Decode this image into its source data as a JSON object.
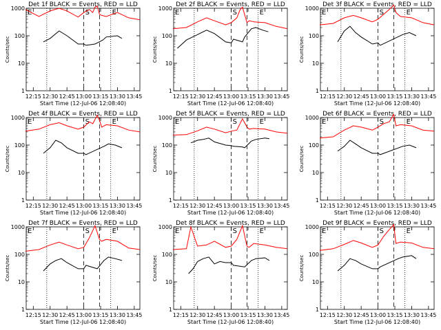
{
  "shared": {
    "ylabel": "Counts/sec",
    "xlabel": "Start Time (12-Jul-06 12:08:40)",
    "xticks": [
      "12:15",
      "12:30",
      "12:45",
      "13:00",
      "13:15",
      "13:30",
      "13:45"
    ],
    "yticks": [
      "1",
      "10",
      "100",
      "1000"
    ],
    "markers": {
      "E_left": "E",
      "S": "S",
      "E_right": "E"
    },
    "colors": {
      "events": "#000000",
      "lld": "#ff0000"
    }
  },
  "chart_data": [
    {
      "type": "line",
      "title": "Det 1f BLACK = Events, RED = LLD",
      "ylabel": "Counts/sec",
      "xlabel": "Start Time (12-Jul-06 12:08:40)",
      "yscale": "log",
      "ylim": [
        1,
        1000
      ],
      "xlim": [
        "12:08",
        "13:50"
      ],
      "series": [
        {
          "name": "LLD",
          "color": "#ff0000",
          "x": [
            "12:08",
            "12:20",
            "12:30",
            "12:38",
            "12:45",
            "12:55",
            "13:00",
            "13:05",
            "13:08",
            "13:10",
            "13:12",
            "13:14",
            "13:16",
            "13:20",
            "13:30",
            "13:40",
            "13:50"
          ],
          "values": [
            900,
            500,
            800,
            1000,
            800,
            480,
            700,
            900,
            700,
            1100,
            1200,
            600,
            550,
            500,
            700,
            450,
            380
          ]
        },
        {
          "name": "Events",
          "color": "#000000",
          "x": [
            "12:24",
            "12:30",
            "12:38",
            "12:45",
            "12:55",
            "13:00",
            "13:02",
            "13:10",
            "13:12",
            "13:17",
            "13:20",
            "13:30",
            "13:34"
          ],
          "values": [
            60,
            80,
            150,
            100,
            50,
            50,
            45,
            50,
            55,
            70,
            90,
            100,
            80
          ]
        }
      ]
    },
    {
      "type": "line",
      "title": "Det 2f BLACK = Events, RED = LLD",
      "ylabel": "Counts/sec",
      "xlabel": "Start Time (12-Jul-06 12:08:40)",
      "yscale": "log",
      "ylim": [
        1,
        1000
      ],
      "xlim": [
        "12:08",
        "13:50"
      ],
      "series": [
        {
          "name": "LLD",
          "color": "#ff0000",
          "x": [
            "12:08",
            "12:20",
            "12:30",
            "12:38",
            "12:45",
            "12:55",
            "13:00",
            "13:05",
            "13:08",
            "13:10",
            "13:14",
            "13:16",
            "13:20",
            "13:30",
            "13:40",
            "13:50"
          ],
          "values": [
            180,
            200,
            320,
            450,
            350,
            250,
            300,
            450,
            900,
            1100,
            300,
            350,
            320,
            300,
            220,
            180
          ]
        },
        {
          "name": "Events",
          "color": "#000000",
          "x": [
            "12:12",
            "12:20",
            "12:30",
            "12:38",
            "12:45",
            "12:55",
            "13:00",
            "13:02",
            "13:10",
            "13:12",
            "13:18",
            "13:22",
            "13:28",
            "13:33"
          ],
          "values": [
            35,
            70,
            110,
            160,
            120,
            60,
            55,
            75,
            60,
            90,
            180,
            200,
            160,
            140
          ]
        }
      ]
    },
    {
      "type": "line",
      "title": "Det 3f BLACK = Events, RED = LLD",
      "ylabel": "Counts/sec",
      "xlabel": "Start Time (12-Jul-06 12:08:40)",
      "yscale": "log",
      "ylim": [
        1,
        1000
      ],
      "xlim": [
        "12:08",
        "13:50"
      ],
      "series": [
        {
          "name": "LLD",
          "color": "#ff0000",
          "x": [
            "12:08",
            "12:20",
            "12:30",
            "12:38",
            "12:45",
            "12:55",
            "13:00",
            "13:05",
            "13:10",
            "13:14",
            "13:16",
            "13:20",
            "13:30",
            "13:40",
            "13:50"
          ],
          "values": [
            250,
            280,
            450,
            550,
            450,
            320,
            400,
            600,
            900,
            1300,
            700,
            500,
            450,
            300,
            250
          ]
        },
        {
          "name": "Events",
          "color": "#000000",
          "x": [
            "12:24",
            "12:30",
            "12:35",
            "12:40",
            "12:45",
            "12:55",
            "13:00",
            "13:02",
            "13:22",
            "13:28",
            "13:34"
          ],
          "values": [
            60,
            150,
            220,
            130,
            90,
            50,
            55,
            45,
            110,
            130,
            100
          ]
        }
      ]
    },
    {
      "type": "line",
      "title": "Det 4f BLACK = Events, RED = LLD",
      "ylabel": "Counts/sec",
      "xlabel": "Start Time (12-Jul-06 12:08:40)",
      "yscale": "log",
      "ylim": [
        1,
        1000
      ],
      "xlim": [
        "12:08",
        "13:50"
      ],
      "series": [
        {
          "name": "LLD",
          "color": "#ff0000",
          "x": [
            "12:08",
            "12:20",
            "12:30",
            "12:38",
            "12:45",
            "12:55",
            "13:00",
            "13:05",
            "13:08",
            "13:12",
            "13:14",
            "13:16",
            "13:20",
            "13:30",
            "13:40",
            "13:50"
          ],
          "values": [
            320,
            380,
            550,
            650,
            500,
            380,
            450,
            700,
            600,
            1200,
            800,
            450,
            550,
            500,
            350,
            300
          ]
        },
        {
          "name": "Events",
          "color": "#000000",
          "x": [
            "12:24",
            "12:30",
            "12:35",
            "12:40",
            "12:45",
            "12:55",
            "13:00",
            "13:02",
            "13:18",
            "13:22",
            "13:28",
            "13:34"
          ],
          "values": [
            50,
            80,
            150,
            120,
            80,
            50,
            50,
            45,
            90,
            110,
            100,
            80
          ]
        }
      ]
    },
    {
      "type": "line",
      "title": "Det 5f BLACK = Events, RED = LLD",
      "ylabel": "Counts/sec",
      "xlabel": "Start Time (12-Jul-06 12:08:40)",
      "yscale": "log",
      "ylim": [
        1,
        1000
      ],
      "xlim": [
        "12:08",
        "13:50"
      ],
      "series": [
        {
          "name": "LLD",
          "color": "#ff0000",
          "x": [
            "12:08",
            "12:20",
            "12:30",
            "12:38",
            "12:45",
            "12:55",
            "13:00",
            "13:05",
            "13:10",
            "13:14",
            "13:16",
            "13:20",
            "13:30",
            "13:40",
            "13:50"
          ],
          "values": [
            230,
            240,
            330,
            450,
            380,
            280,
            320,
            350,
            900,
            450,
            380,
            400,
            380,
            300,
            270
          ]
        },
        {
          "name": "Events",
          "color": "#000000",
          "x": [
            "12:24",
            "12:30",
            "12:35",
            "12:40",
            "12:45",
            "12:55",
            "13:00",
            "13:02",
            "13:10",
            "13:12",
            "13:18",
            "13:22",
            "13:30",
            "13:34"
          ],
          "values": [
            120,
            150,
            160,
            180,
            130,
            100,
            95,
            90,
            85,
            80,
            140,
            160,
            180,
            170
          ]
        }
      ]
    },
    {
      "type": "line",
      "title": "Det 6f BLACK = Events, RED = LLD",
      "ylabel": "Counts/sec",
      "xlabel": "Start Time (12-Jul-06 12:08:40)",
      "yscale": "log",
      "ylim": [
        1,
        1000
      ],
      "xlim": [
        "12:08",
        "13:50"
      ],
      "series": [
        {
          "name": "LLD",
          "color": "#ff0000",
          "x": [
            "12:08",
            "12:20",
            "12:30",
            "12:38",
            "12:45",
            "12:55",
            "13:00",
            "13:05",
            "13:10",
            "13:14",
            "13:16",
            "13:20",
            "13:30",
            "13:40",
            "13:50"
          ],
          "values": [
            180,
            200,
            350,
            500,
            450,
            350,
            450,
            600,
            700,
            1300,
            500,
            550,
            500,
            350,
            320
          ]
        },
        {
          "name": "Events",
          "color": "#000000",
          "x": [
            "12:24",
            "12:30",
            "12:35",
            "12:40",
            "12:45",
            "12:55",
            "13:00",
            "13:02",
            "13:22",
            "13:28",
            "13:34"
          ],
          "values": [
            60,
            90,
            150,
            110,
            80,
            50,
            50,
            45,
            90,
            100,
            80
          ]
        }
      ]
    },
    {
      "type": "line",
      "title": "Det 7f BLACK = Events, RED = LLD",
      "ylabel": "Counts/sec",
      "xlabel": "Start Time (12-Jul-06 12:08:40)",
      "yscale": "log",
      "ylim": [
        1,
        1000
      ],
      "xlim": [
        "12:08",
        "13:50"
      ],
      "series": [
        {
          "name": "LLD",
          "color": "#ff0000",
          "x": [
            "12:08",
            "12:20",
            "12:30",
            "12:38",
            "12:45",
            "12:55",
            "13:00",
            "13:05",
            "13:10",
            "13:14",
            "13:16",
            "13:20",
            "13:30",
            "13:40",
            "13:50"
          ],
          "values": [
            130,
            150,
            220,
            280,
            220,
            160,
            180,
            400,
            1100,
            350,
            300,
            350,
            300,
            170,
            150
          ]
        },
        {
          "name": "Events",
          "color": "#000000",
          "x": [
            "12:24",
            "12:30",
            "12:35",
            "12:40",
            "12:45",
            "12:55",
            "13:00",
            "13:02",
            "13:12",
            "13:18",
            "13:22",
            "13:28",
            "13:34"
          ],
          "values": [
            25,
            45,
            60,
            70,
            50,
            30,
            30,
            40,
            30,
            60,
            80,
            70,
            60
          ]
        }
      ]
    },
    {
      "type": "line",
      "title": "Det 8f BLACK = Events, RED = LLD",
      "ylabel": "Counts/sec",
      "xlabel": "Start Time (12-Jul-06 12:08:40)",
      "yscale": "log",
      "ylim": [
        1,
        1000
      ],
      "xlim": [
        "12:08",
        "13:50"
      ],
      "series": [
        {
          "name": "LLD",
          "color": "#ff0000",
          "x": [
            "12:08",
            "12:20",
            "12:24",
            "12:30",
            "12:38",
            "12:45",
            "12:55",
            "13:00",
            "13:05",
            "13:10",
            "13:14",
            "13:16",
            "13:20",
            "13:30",
            "13:40",
            "13:50"
          ],
          "values": [
            150,
            160,
            1000,
            200,
            220,
            300,
            180,
            200,
            350,
            1100,
            200,
            180,
            250,
            220,
            180,
            160
          ]
        },
        {
          "name": "Events",
          "color": "#000000",
          "x": [
            "12:22",
            "12:26",
            "12:30",
            "12:35",
            "12:40",
            "12:45",
            "12:50",
            "12:55",
            "13:00",
            "13:02",
            "13:12",
            "13:18",
            "13:22",
            "13:30",
            "13:34"
          ],
          "values": [
            20,
            30,
            55,
            70,
            80,
            45,
            55,
            50,
            50,
            40,
            35,
            60,
            70,
            75,
            60
          ]
        }
      ]
    },
    {
      "type": "line",
      "title": "Det 9f BLACK = Events, RED = LLD",
      "ylabel": "Counts/sec",
      "xlabel": "Start Time (12-Jul-06 12:08:40)",
      "yscale": "log",
      "ylim": [
        1,
        1000
      ],
      "xlim": [
        "12:08",
        "13:50"
      ],
      "series": [
        {
          "name": "LLD",
          "color": "#ff0000",
          "x": [
            "12:08",
            "12:20",
            "12:30",
            "12:38",
            "12:45",
            "12:55",
            "13:00",
            "13:05",
            "13:10",
            "13:14",
            "13:16",
            "13:20",
            "13:30",
            "13:40",
            "13:50"
          ],
          "values": [
            140,
            160,
            230,
            320,
            260,
            180,
            220,
            450,
            800,
            1200,
            250,
            280,
            260,
            180,
            160
          ]
        },
        {
          "name": "Events",
          "color": "#000000",
          "x": [
            "12:24",
            "12:30",
            "12:35",
            "12:40",
            "12:45",
            "12:55",
            "13:00",
            "13:02",
            "13:18",
            "13:22",
            "13:30",
            "13:34"
          ],
          "values": [
            25,
            40,
            70,
            60,
            45,
            30,
            30,
            35,
            70,
            80,
            90,
            70
          ]
        }
      ]
    }
  ]
}
